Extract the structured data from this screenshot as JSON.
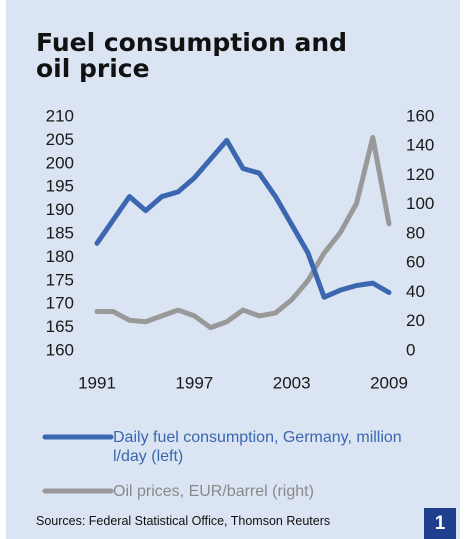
{
  "chart_data": {
    "type": "line",
    "title": "Fuel consumption and oil price",
    "x": [
      1991,
      1992,
      1993,
      1994,
      1995,
      1996,
      1997,
      1998,
      1999,
      2000,
      2001,
      2002,
      2003,
      2004,
      2005,
      2006,
      2007,
      2008,
      2009
    ],
    "series": [
      {
        "name": "Daily fuel consumption, Germany, million l/day (left)",
        "color": "#3a67b0",
        "axis": "y",
        "values": [
          183,
          188,
          193,
          190,
          193,
          194,
          197,
          201,
          205,
          199,
          198,
          193,
          187,
          181,
          171.5,
          173,
          174,
          174.5,
          172.5
        ]
      },
      {
        "name": "Oil prices, EUR/barrel (right)",
        "color": "#999999",
        "axis": "y2",
        "values": [
          27,
          27,
          21,
          20,
          24,
          28,
          24,
          16,
          20,
          28,
          24,
          26,
          35,
          48,
          67,
          81,
          101,
          146,
          87
        ]
      }
    ],
    "xlim": [
      1991,
      2009
    ],
    "xticks": [
      1991,
      1997,
      2003,
      2009
    ],
    "ylim": [
      160,
      210
    ],
    "yticks": [
      160,
      165,
      170,
      175,
      180,
      185,
      190,
      195,
      200,
      205,
      210
    ],
    "y2lim": [
      0,
      160
    ],
    "y2ticks": [
      0,
      20,
      40,
      60,
      80,
      100,
      120,
      140,
      160
    ],
    "grid": false,
    "source": "Sources: Federal Statistical Office, Thomson Reuters",
    "badge": "1"
  }
}
